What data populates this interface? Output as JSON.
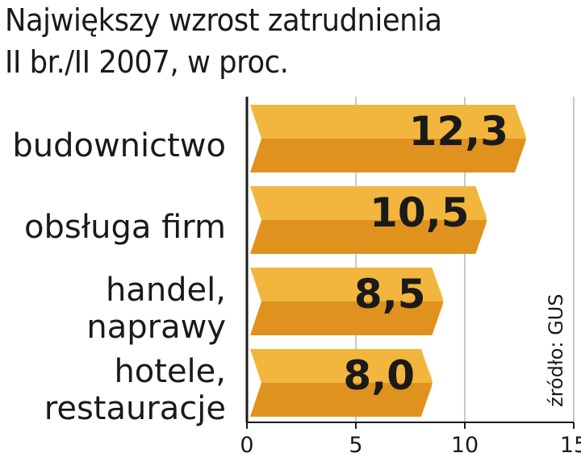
{
  "chart_data": {
    "type": "bar",
    "orientation": "horizontal",
    "title": "Największy wzrost zatrudnienia",
    "subtitle": "II br./II 2007, w proc.",
    "categories": [
      [
        "budownictwo"
      ],
      [
        "obsługa firm"
      ],
      [
        "handel,",
        "naprawy"
      ],
      [
        "hotele,",
        "restauracje"
      ]
    ],
    "values": [
      12.3,
      10.5,
      8.5,
      8.0
    ],
    "value_labels": [
      "12,3",
      "10,5",
      "8,5",
      "8,0"
    ],
    "xlim": [
      0,
      15
    ],
    "xticks": [
      0,
      5,
      10,
      15
    ],
    "grid": true,
    "source": "źródło: GUS",
    "colors": {
      "bar_top": "#f2b63e",
      "bar_bottom": "#e0921e",
      "bar_side": "#f6d47e",
      "axis": "#1a1a1a",
      "grid": "#b5b5b5"
    }
  }
}
